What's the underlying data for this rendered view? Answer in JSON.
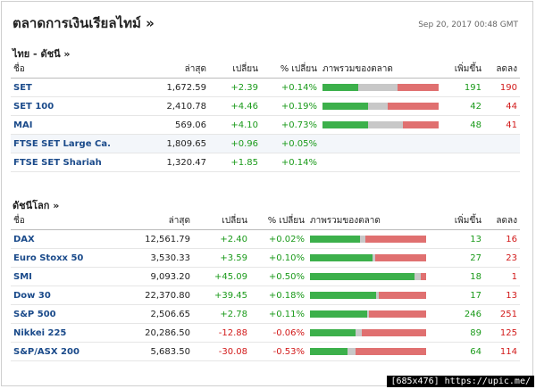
{
  "header": {
    "title": "ตลาดการเงินเรียลไทม์ »",
    "timestamp": "Sep 20, 2017 00:48 GMT"
  },
  "columns": {
    "name": "ชื่อ",
    "last": "ล่าสุด",
    "change": "เปลี่ยน",
    "pct": "% เปลี่ยน",
    "market": "ภาพรวมของตลาด",
    "adv": "เพิ่มขึ้น",
    "dec": "ลดลง"
  },
  "thai": {
    "title": "ไทย - ดัชนี  »",
    "rows": [
      {
        "name": "SET",
        "last": "1,672.59",
        "change": "+2.39",
        "pct": "+0.14%",
        "dir": "up",
        "bar": [
          0.31,
          0.34,
          0.35
        ],
        "adv": "191",
        "dec": "190",
        "highlight": false
      },
      {
        "name": "SET 100",
        "last": "2,410.78",
        "change": "+4.46",
        "pct": "+0.19%",
        "dir": "up",
        "bar": [
          0.39,
          0.17,
          0.44
        ],
        "adv": "42",
        "dec": "44",
        "highlight": false
      },
      {
        "name": "MAI",
        "last": "569.06",
        "change": "+4.10",
        "pct": "+0.73%",
        "dir": "up",
        "bar": [
          0.39,
          0.3,
          0.31
        ],
        "adv": "48",
        "dec": "41",
        "highlight": false
      },
      {
        "name": "FTSE SET Large Ca.",
        "last": "1,809.65",
        "change": "+0.96",
        "pct": "+0.05%",
        "dir": "up",
        "bar": null,
        "adv": "",
        "dec": "",
        "highlight": true
      },
      {
        "name": "FTSE SET Shariah",
        "last": "1,320.47",
        "change": "+1.85",
        "pct": "+0.14%",
        "dir": "up",
        "bar": null,
        "adv": "",
        "dec": "",
        "highlight": false
      }
    ]
  },
  "world": {
    "title": "ดัชนีโลก »",
    "rows": [
      {
        "name": "DAX",
        "last": "12,561.79",
        "change": "+2.40",
        "pct": "+0.02%",
        "dir": "up",
        "bar": [
          0.43,
          0.05,
          0.52
        ],
        "adv": "13",
        "dec": "16"
      },
      {
        "name": "Euro Stoxx 50",
        "last": "3,530.33",
        "change": "+3.59",
        "pct": "+0.10%",
        "dir": "up",
        "bar": [
          0.54,
          0.02,
          0.44
        ],
        "adv": "27",
        "dec": "23"
      },
      {
        "name": "SMI",
        "last": "9,093.20",
        "change": "+45.09",
        "pct": "+0.50%",
        "dir": "up",
        "bar": [
          0.9,
          0.05,
          0.05
        ],
        "adv": "18",
        "dec": "1"
      },
      {
        "name": "Dow 30",
        "last": "22,370.80",
        "change": "+39.45",
        "pct": "+0.18%",
        "dir": "up",
        "bar": [
          0.57,
          0.02,
          0.41
        ],
        "adv": "17",
        "dec": "13"
      },
      {
        "name": "S&P 500",
        "last": "2,506.65",
        "change": "+2.78",
        "pct": "+0.11%",
        "dir": "up",
        "bar": [
          0.49,
          0.02,
          0.49
        ],
        "adv": "246",
        "dec": "251"
      },
      {
        "name": "Nikkei 225",
        "last": "20,286.50",
        "change": "-12.88",
        "pct": "-0.06%",
        "dir": "down",
        "bar": [
          0.39,
          0.06,
          0.55
        ],
        "adv": "89",
        "dec": "125"
      },
      {
        "name": "S&P/ASX 200",
        "last": "5,683.50",
        "change": "-30.08",
        "pct": "-0.53%",
        "dir": "down",
        "bar": [
          0.32,
          0.07,
          0.61
        ],
        "adv": "64",
        "dec": "114"
      }
    ]
  },
  "watermark": "[685x476] https://upic.me/"
}
